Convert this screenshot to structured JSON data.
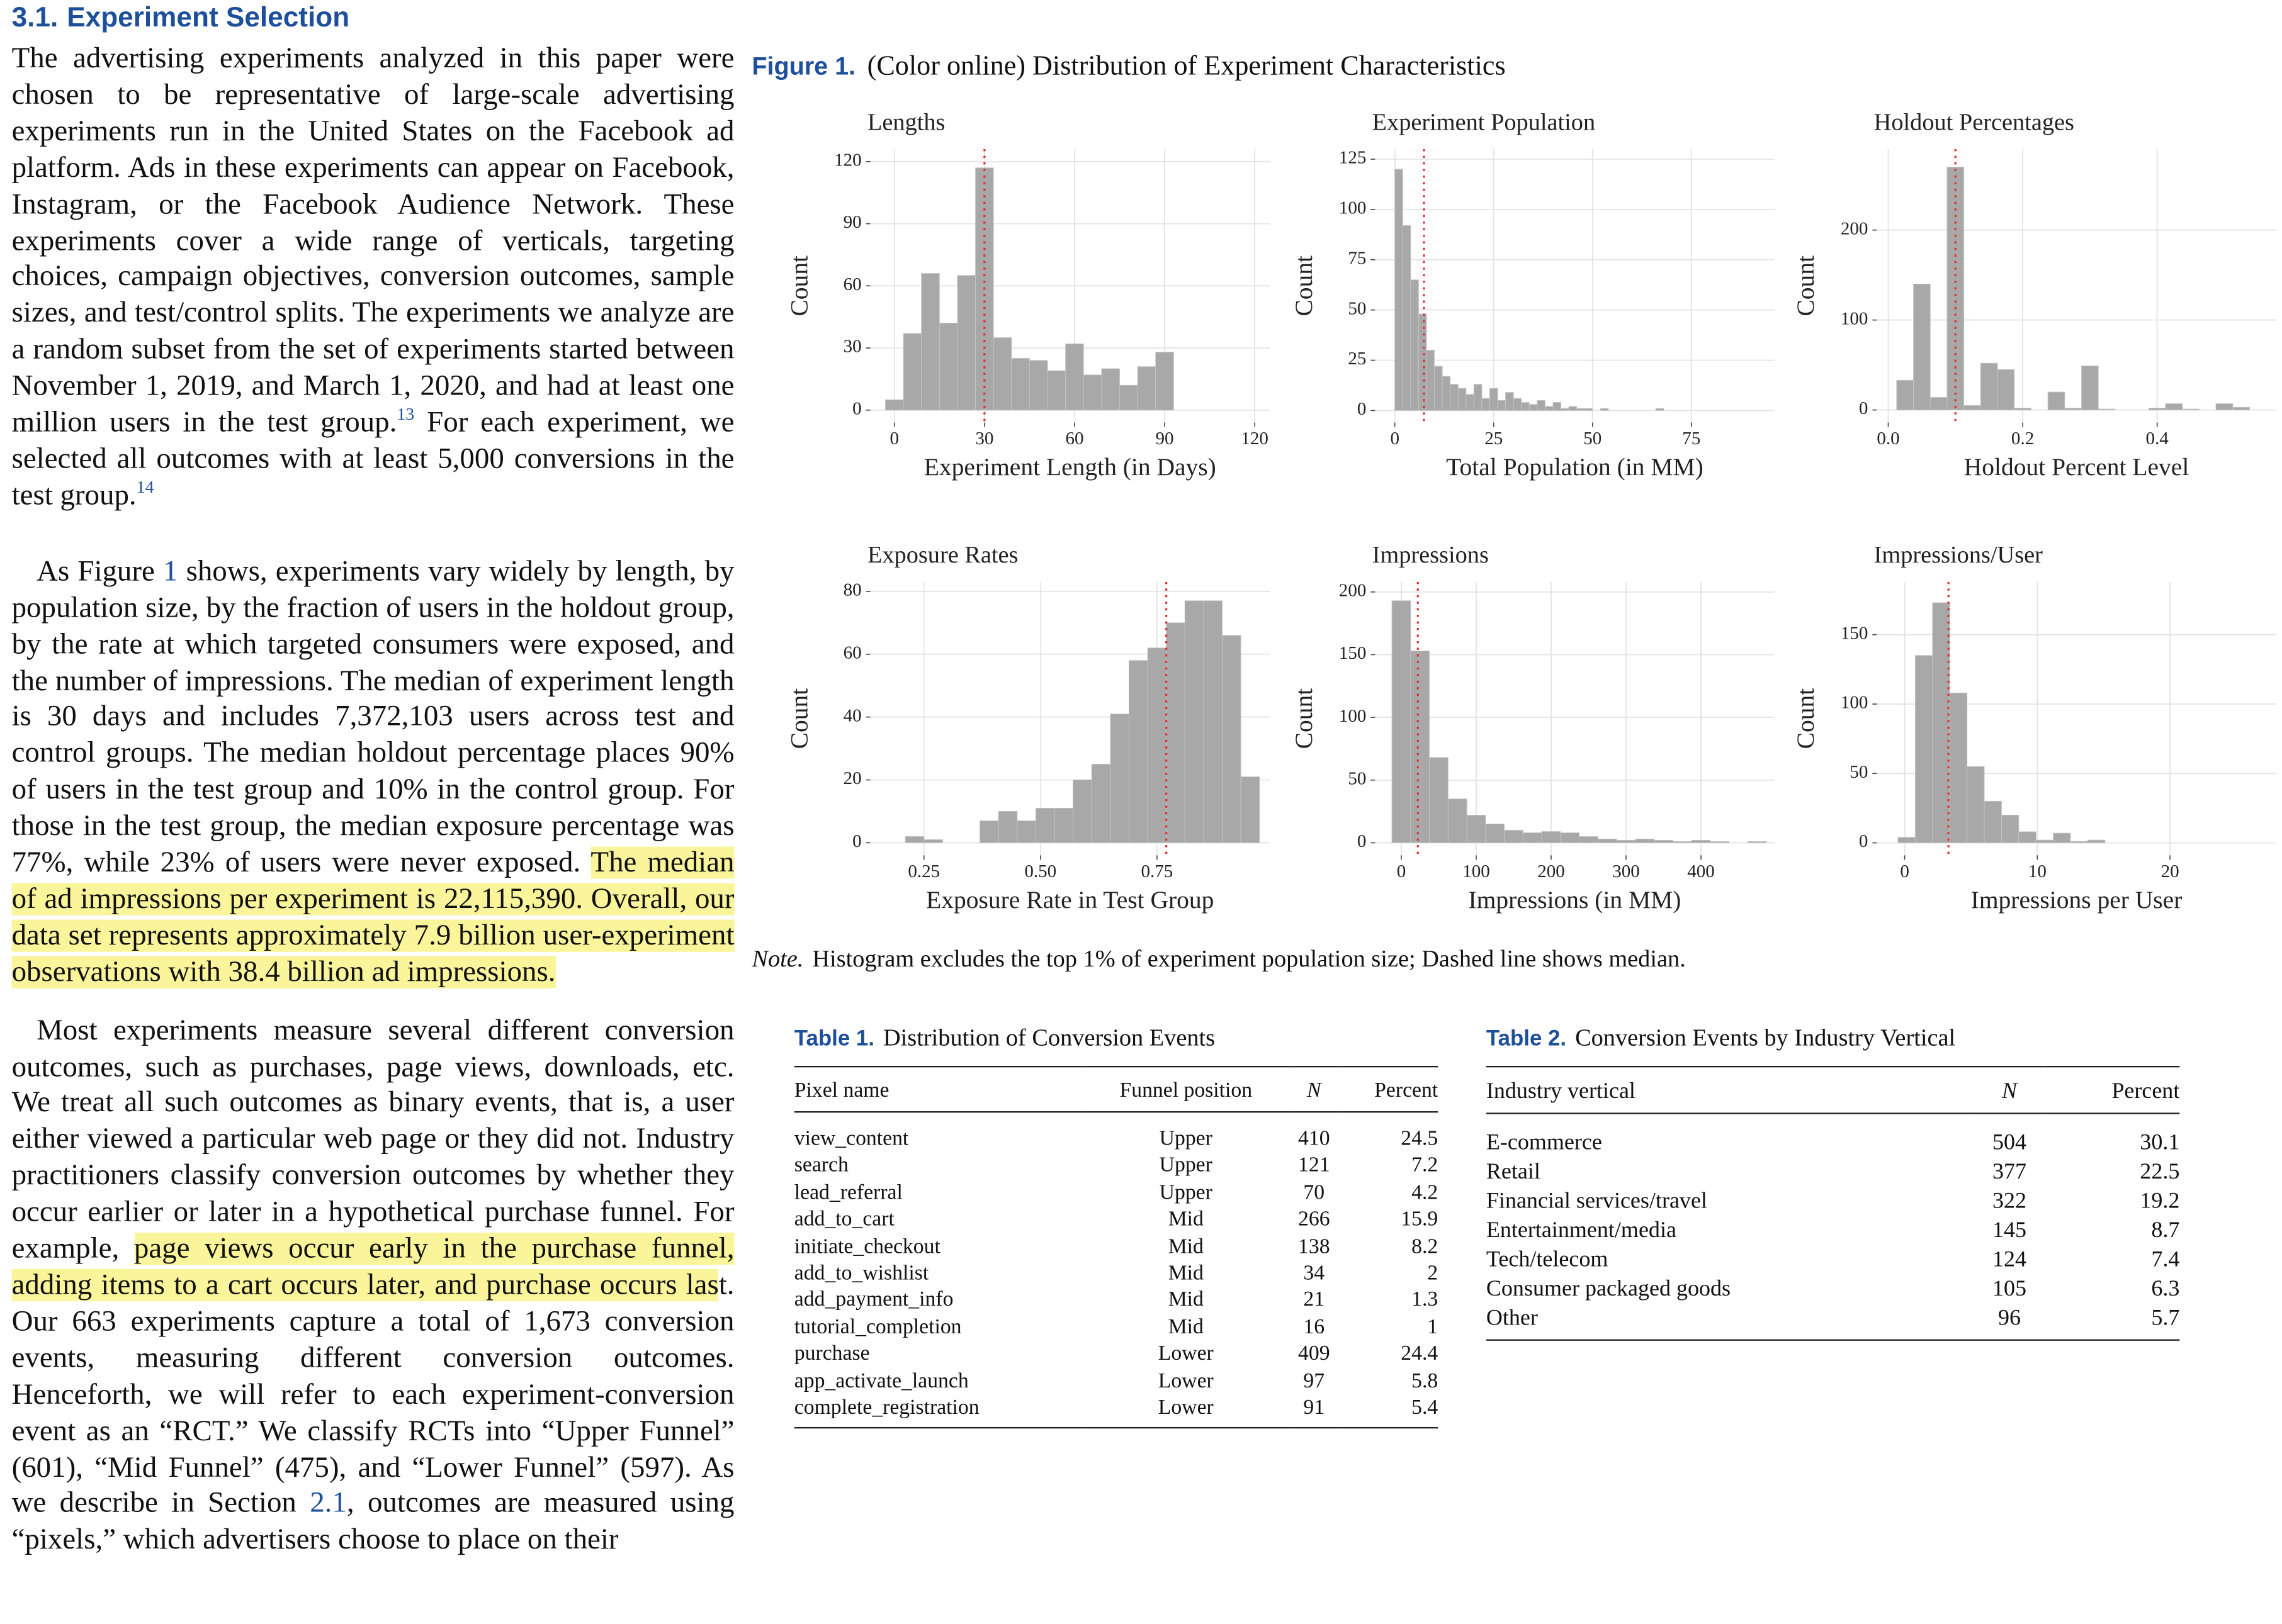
{
  "section": {
    "number": "3.1.",
    "title": "Experiment Selection"
  },
  "paragraphs": [
    {
      "runs": [
        {
          "text": "The advertising experiments analyzed in this paper were chosen to be representative of large-scale advertising experiments run in the United States on the Facebook ad platform. Ads in these experiments can appear on Facebook, Instagram, or the Facebook Audience Network. These experiments cover a wide range of verticals, targeting choices, campaign objectives, conversion outcomes, sample sizes, and test/control splits. The experiments we analyze are a random subset from the set of experiments started between November 1, 2019, and March 1, 2020, and had at least one million users in the test group."
        },
        {
          "text": "13",
          "style": "sup"
        },
        {
          "text": " For each experiment, we selected all outcomes with at least 5,000 conversions in the test group."
        },
        {
          "text": "14",
          "style": "sup"
        }
      ]
    },
    {
      "runs": [
        {
          "text": "As Figure "
        },
        {
          "text": "1",
          "style": "link"
        },
        {
          "text": " shows, experiments vary widely by length, by population size, by the fraction of users in the holdout group, by the rate at which targeted consumers were exposed, and the number of impressions. The median of experiment length is 30 days and includes 7,372,103 users across test and control groups. The median holdout percentage places 90% of users in the test group and 10% in the control group. For those in the test group, the median exposure percentage was 77%, while 23% of users were never exposed. "
        },
        {
          "text": "The median of ad impressions per experiment is 22,115,390. Overall, our data set represents approximately 7.9 billion user-experiment observations with 38.4 billion ad impressions.",
          "style": "highlight"
        }
      ]
    },
    {
      "runs": [
        {
          "text": "Most experiments measure several different conversion outcomes, such as purchases, page views, downloads, etc. We treat all such outcomes as binary events, that is, a user either viewed a particular web page or they did not. Industry practitioners classify conversion outcomes by whether they occur earlier or later in a hypothetical purchase funnel. For example, "
        },
        {
          "text": "page views occur early in the purchase funnel, adding items to a cart occurs later, and purchase occurs las",
          "style": "highlight"
        },
        {
          "text": "t. Our 663 experiments capture a total of 1,673 conversion events, measuring different conversion outcomes. Henceforth, we will refer to each experiment-conversion event as an “RCT.” We classify RCTs into “Upper Funnel” (601), “Mid Funnel” (475), and “Lower Funnel” (597). As we describe in Section "
        },
        {
          "text": "2.1",
          "style": "link"
        },
        {
          "text": ", outcomes are measured using “pixels,” which advertisers choose to place on their"
        }
      ]
    }
  ],
  "figure": {
    "label": "Figure 1.",
    "caption": "(Color online) Distribution of Experiment Characteristics",
    "note_label": "Note.",
    "note": "Histogram excludes the top 1% of experiment population size; Dashed line shows median."
  },
  "chart_data": [
    {
      "type": "histogram",
      "title": "Lengths",
      "x_label": "Experiment Length (in Days)",
      "y_label": "Count",
      "color": "#a8a8a8",
      "median_color": "#e03030",
      "grid": true,
      "bins": [
        -3,
        3,
        9,
        15,
        21,
        27,
        33,
        39,
        45,
        51,
        57,
        63,
        69,
        75,
        81,
        87,
        93
      ],
      "values": [
        5,
        37,
        66,
        42,
        65,
        117,
        35,
        25,
        24,
        19,
        32,
        17,
        20,
        12,
        21,
        28
      ],
      "median": 30,
      "xlim": [
        -8,
        125
      ],
      "ylim": [
        -6,
        126
      ],
      "xticks": [
        0,
        30,
        60,
        90,
        120
      ],
      "yticks": [
        0,
        30,
        60,
        90,
        120
      ]
    },
    {
      "type": "histogram",
      "title": "Experiment Population",
      "x_label": "Total Population (in MM)",
      "y_label": "Count",
      "color": "#a8a8a8",
      "median_color": "#e03030",
      "grid": true,
      "bins": [
        0,
        2,
        4,
        6,
        8,
        10,
        12,
        14,
        16,
        18,
        20,
        22,
        24,
        26,
        28,
        30,
        32,
        34,
        36,
        38,
        40,
        42,
        44,
        46,
        48,
        50,
        52,
        54,
        56,
        58,
        60,
        62,
        64,
        66,
        68,
        70,
        72
      ],
      "values": [
        120,
        92,
        65,
        48,
        30,
        22,
        17,
        13,
        11,
        8,
        13,
        6,
        11,
        5,
        9,
        6,
        4,
        3,
        5,
        2,
        4,
        1,
        2,
        1,
        1,
        0,
        1,
        0,
        0,
        0,
        0,
        0,
        0,
        1,
        0,
        0
      ],
      "median": 7.37,
      "xlim": [
        -5,
        96
      ],
      "ylim": [
        -6,
        130
      ],
      "xticks": [
        0,
        25,
        50,
        75
      ],
      "yticks": [
        0,
        25,
        50,
        75,
        100,
        125
      ]
    },
    {
      "type": "histogram",
      "title": "Holdout Percentages",
      "x_label": "Holdout Percent Level",
      "y_label": "Count",
      "color": "#a8a8a8",
      "median_color": "#e03030",
      "grid": true,
      "bins": [
        0.0125,
        0.0375,
        0.0625,
        0.0875,
        0.1125,
        0.1375,
        0.1625,
        0.1875,
        0.2125,
        0.2375,
        0.2625,
        0.2875,
        0.3125,
        0.3375,
        0.3625,
        0.3875,
        0.4125,
        0.4375,
        0.4625,
        0.4875,
        0.5125,
        0.5375
      ],
      "values": [
        33,
        140,
        14,
        270,
        5,
        52,
        45,
        2,
        0,
        20,
        2,
        49,
        1,
        0,
        0,
        2,
        7,
        1,
        0,
        7,
        3
      ],
      "median": 0.1,
      "xlim": [
        -0.017,
        0.577
      ],
      "ylim": [
        -14,
        290
      ],
      "xticks": [
        {
          "value": 0,
          "label": "0.0"
        },
        0.2,
        0.4
      ],
      "yticks": [
        0,
        100,
        200
      ]
    },
    {
      "type": "histogram",
      "title": "Exposure Rates",
      "x_label": "Exposure Rate in Test Group",
      "y_label": "Count",
      "color": "#a8a8a8",
      "median_color": "#e03030",
      "grid": true,
      "bins": [
        0.17,
        0.21,
        0.25,
        0.29,
        0.33,
        0.37,
        0.41,
        0.45,
        0.49,
        0.53,
        0.57,
        0.61,
        0.65,
        0.69,
        0.73,
        0.77,
        0.81,
        0.85,
        0.89,
        0.93,
        0.97
      ],
      "values": [
        0,
        2,
        1,
        0,
        0,
        7,
        10,
        7,
        11,
        11,
        20,
        25,
        41,
        58,
        62,
        70,
        77,
        77,
        66,
        21
      ],
      "median": 0.77,
      "xlim": [
        0.135,
        0.992
      ],
      "ylim": [
        -4,
        83
      ],
      "xticks": [
        0.25,
        {
          "value": 0.5,
          "label": "0.50"
        },
        0.75
      ],
      "yticks": [
        0,
        20,
        40,
        60,
        80
      ]
    },
    {
      "type": "histogram",
      "title": "Impressions",
      "x_label": "Impressions (in MM)",
      "y_label": "Count",
      "color": "#a8a8a8",
      "median_color": "#e03030",
      "grid": true,
      "bins": [
        -12.5,
        12.5,
        37.5,
        62.5,
        87.5,
        112.5,
        137.5,
        162.5,
        187.5,
        212.5,
        237.5,
        262.5,
        287.5,
        312.5,
        337.5,
        362.5,
        387.5,
        412.5,
        437.5,
        462.5,
        487.5
      ],
      "values": [
        193,
        153,
        68,
        35,
        22,
        15,
        10,
        8,
        9,
        8,
        5,
        3,
        2,
        3,
        2,
        1,
        2,
        1,
        0,
        1
      ],
      "median": 22.1,
      "xlim": [
        -35,
        498
      ],
      "ylim": [
        -10,
        208
      ],
      "xticks": [
        0,
        100,
        200,
        300,
        400
      ],
      "yticks": [
        0,
        50,
        100,
        150,
        200
      ]
    },
    {
      "type": "histogram",
      "title": "Impressions/User",
      "x_label": "Impressions per User",
      "y_label": "Count",
      "color": "#a8a8a8",
      "median_color": "#e03030",
      "grid": true,
      "bins": [
        -0.5,
        0.8,
        2.1,
        3.4,
        4.7,
        6.0,
        7.3,
        8.6,
        9.9,
        11.2,
        12.5,
        13.8,
        15.1
      ],
      "values": [
        4,
        135,
        173,
        108,
        55,
        30,
        20,
        8,
        2,
        7,
        1,
        2
      ],
      "median": 3.3,
      "xlim": [
        -2.1,
        28
      ],
      "ylim": [
        -9,
        188
      ],
      "xticks": [
        0,
        10,
        20
      ],
      "yticks": [
        0,
        50,
        100,
        150
      ]
    }
  ],
  "table1": {
    "label": "Table 1.",
    "caption": "Distribution of Conversion Events",
    "columns": [
      "Pixel name",
      "Funnel position",
      "N",
      "Percent"
    ],
    "rows": [
      [
        "view_content",
        "Upper",
        "410",
        "24.5"
      ],
      [
        "search",
        "Upper",
        "121",
        "7.2"
      ],
      [
        "lead_referral",
        "Upper",
        "70",
        "4.2"
      ],
      [
        "add_to_cart",
        "Mid",
        "266",
        "15.9"
      ],
      [
        "initiate_checkout",
        "Mid",
        "138",
        "8.2"
      ],
      [
        "add_to_wishlist",
        "Mid",
        "34",
        "2"
      ],
      [
        "add_payment_info",
        "Mid",
        "21",
        "1.3"
      ],
      [
        "tutorial_completion",
        "Mid",
        "16",
        "1"
      ],
      [
        "purchase",
        "Lower",
        "409",
        "24.4"
      ],
      [
        "app_activate_launch",
        "Lower",
        "97",
        "5.8"
      ],
      [
        "complete_registration",
        "Lower",
        "91",
        "5.4"
      ]
    ]
  },
  "table2": {
    "label": "Table 2.",
    "caption": "Conversion Events by Industry Vertical",
    "columns": [
      "Industry vertical",
      "N",
      "Percent"
    ],
    "rows": [
      [
        "E-commerce",
        "504",
        "30.1"
      ],
      [
        "Retail",
        "377",
        "22.5"
      ],
      [
        "Financial services/travel",
        "322",
        "19.2"
      ],
      [
        "Entertainment/media",
        "145",
        "8.7"
      ],
      [
        "Tech/telecom",
        "124",
        "7.4"
      ],
      [
        "Consumer packaged goods",
        "105",
        "6.3"
      ],
      [
        "Other",
        "96",
        "5.7"
      ]
    ]
  }
}
